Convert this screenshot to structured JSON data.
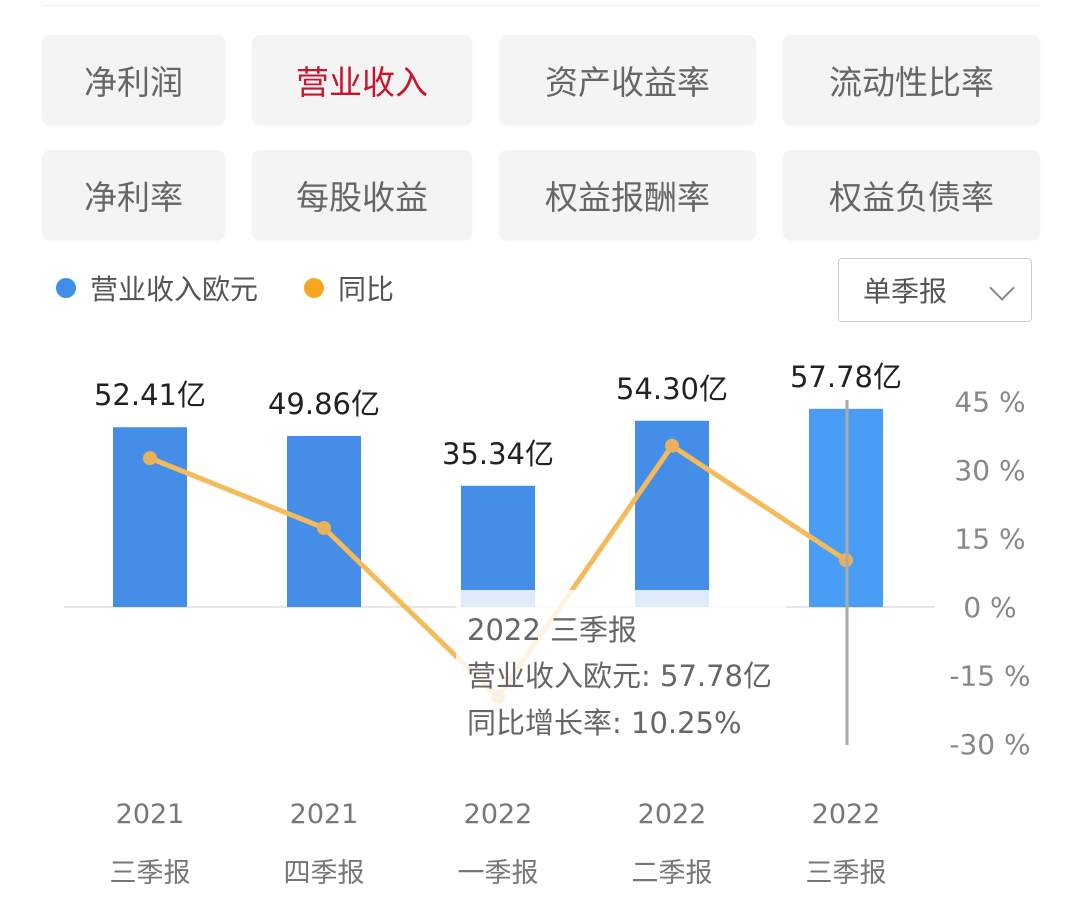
{
  "tabs": [
    {
      "label": "净利润",
      "active": false
    },
    {
      "label": "营业收入",
      "active": true
    },
    {
      "label": "资产收益率",
      "active": false
    },
    {
      "label": "流动性比率",
      "active": false
    },
    {
      "label": "净利率",
      "active": false
    },
    {
      "label": "每股收益",
      "active": false
    },
    {
      "label": "权益报酬率",
      "active": false
    },
    {
      "label": "权益负债率",
      "active": false
    }
  ],
  "legend": [
    {
      "label": "营业收入欧元",
      "color": "#3f8ee8"
    },
    {
      "label": "同比",
      "color": "#f5a623"
    }
  ],
  "period_select": {
    "value": "单季报",
    "icon": "chevron-down-icon"
  },
  "colors": {
    "accent": "#c8152d",
    "bar": "#448ee8",
    "bar_highlight": "#4a9df5",
    "line": "#f3bb5c"
  },
  "chart_data": {
    "type": "bar+line",
    "categories": [
      [
        "2021",
        "三季报"
      ],
      [
        "2021",
        "四季报"
      ],
      [
        "2022",
        "一季报"
      ],
      [
        "2022",
        "二季报"
      ],
      [
        "2022",
        "三季报"
      ]
    ],
    "series": [
      {
        "name": "营业收入欧元",
        "type": "bar",
        "values": [
          52.41,
          49.86,
          35.34,
          54.3,
          57.78
        ],
        "labels": [
          "52.41亿",
          "49.86亿",
          "35.34亿",
          "54.30亿",
          "57.78亿"
        ]
      },
      {
        "name": "同比",
        "type": "line",
        "axis": "right",
        "values": [
          32.6,
          17.3,
          -19.7,
          35.3,
          10.25
        ]
      }
    ],
    "right_axis": {
      "ticks": [
        "45 %",
        "30 %",
        "15 %",
        "0 %",
        "-15 %",
        "-30 %"
      ],
      "range": [
        -30,
        45
      ]
    },
    "selected_index": 4,
    "tooltip": {
      "title": "2022 三季报",
      "line1": "营业收入欧元: 57.78亿",
      "line2": "同比增长率: 10.25%"
    }
  }
}
